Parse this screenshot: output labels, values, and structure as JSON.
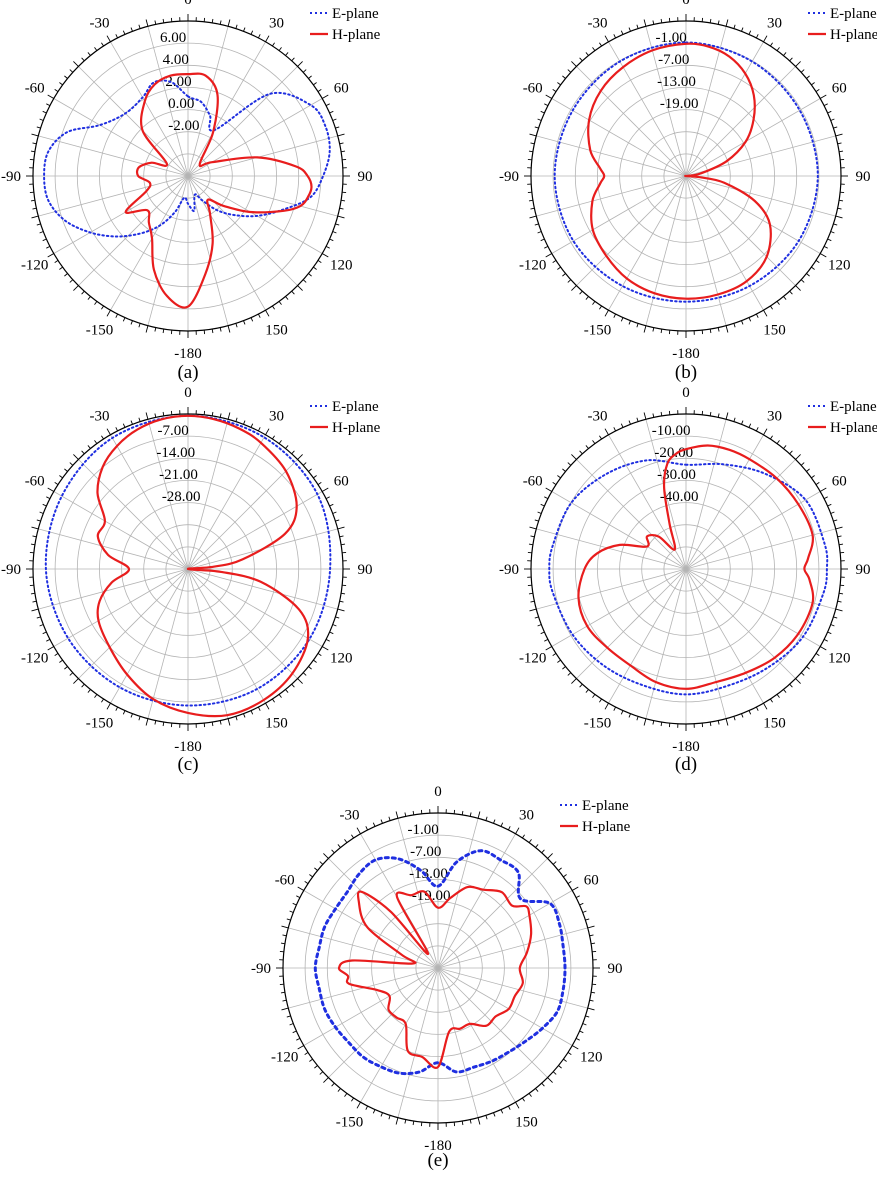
{
  "colors": {
    "e_plane": "#1f2fe0",
    "h_plane": "#e81d1d",
    "grid": "#b4b4b4",
    "axis": "#000000"
  },
  "chart_data": [
    {
      "type": "polar-line",
      "caption": "(a)",
      "angle_labels": [
        "0",
        "30",
        "60",
        "90",
        "120",
        "150",
        "-180",
        "-150",
        "-120",
        "-90",
        "-60",
        "-30"
      ],
      "radial_ticks": [
        "6.00",
        "4.00",
        "2.00",
        "0.00",
        "-2.00"
      ],
      "radial_range": [
        -6,
        8
      ],
      "legend": [
        "E-plane",
        "H-plane"
      ],
      "legend_placement": "top-right",
      "series": [
        {
          "name": "E-plane",
          "style": "dotted",
          "theta": [
            0,
            10,
            20,
            30,
            45,
            60,
            70,
            80,
            90,
            100,
            110,
            120,
            130,
            140,
            150,
            160,
            170,
            180,
            -170,
            -160,
            -150,
            -140,
            -130,
            -120,
            -110,
            -100,
            -90,
            -80,
            -70,
            -60,
            -45,
            -30,
            -20,
            -10
          ],
          "values": [
            1.2,
            0.8,
            -0.2,
            -1.2,
            4.5,
            6.8,
            7.2,
            7.0,
            6.2,
            5.2,
            3.0,
            1.2,
            -0.5,
            -2.0,
            -3.5,
            -4.2,
            -2.8,
            -3.5,
            -4.0,
            -2.5,
            -0.8,
            0.8,
            2.5,
            4.2,
            5.8,
            6.8,
            7.0,
            6.8,
            5.6,
            3.2,
            2.0,
            2.2,
            3.0,
            2.6
          ]
        },
        {
          "name": "H-plane",
          "style": "solid",
          "theta": [
            0,
            10,
            20,
            30,
            45,
            60,
            75,
            85,
            90,
            95,
            100,
            105,
            110,
            120,
            130,
            140,
            150,
            160,
            170,
            180,
            -170,
            -160,
            -150,
            -140,
            -130,
            -120,
            -110,
            -100,
            -90,
            -80,
            -70,
            -60,
            -45,
            -30,
            -20,
            -10
          ],
          "values": [
            3.2,
            3.2,
            1.8,
            -1.5,
            -4.5,
            -3.5,
            0.5,
            3.8,
            4.8,
            5.2,
            5.0,
            4.5,
            3.2,
            0.5,
            -1.8,
            -3.2,
            -2.0,
            0.5,
            3.0,
            5.8,
            5.0,
            3.0,
            0.5,
            -0.5,
            -1.2,
            0.5,
            -2.0,
            -2.5,
            -1.5,
            -1.5,
            -2.5,
            -3.8,
            -0.2,
            1.8,
            2.8,
            3.2
          ]
        }
      ]
    },
    {
      "type": "polar-line",
      "caption": "(b)",
      "angle_labels": [
        "0",
        "30",
        "60",
        "90",
        "120",
        "150",
        "-180",
        "-150",
        "-120",
        "-90",
        "-60",
        "-30"
      ],
      "radial_ticks": [
        "-1.00",
        "-7.00",
        "-13.00",
        "-19.00"
      ],
      "radial_range": [
        -31,
        5
      ],
      "legend": [
        "E-plane",
        "H-plane"
      ],
      "legend_placement": "top-right",
      "series": [
        {
          "name": "E-plane",
          "style": "dotted",
          "theta": [
            0,
            30,
            60,
            90,
            120,
            150,
            180,
            -150,
            -120,
            -90,
            -60,
            -30
          ],
          "values": [
            0.0,
            -0.3,
            -0.5,
            -0.4,
            -0.8,
            -1.5,
            -1.8,
            -1.5,
            -0.8,
            -0.5,
            -0.6,
            -0.3
          ]
        },
        {
          "name": "H-plane",
          "style": "solid",
          "theta": [
            0,
            10,
            20,
            30,
            40,
            50,
            60,
            70,
            80,
            85,
            90,
            95,
            100,
            110,
            120,
            135,
            150,
            165,
            180,
            -165,
            -150,
            -135,
            -120,
            -105,
            -95,
            -90,
            -85,
            -75,
            -60,
            -45,
            -30,
            -15
          ],
          "values": [
            -0.3,
            -0.5,
            -1.5,
            -3.5,
            -6.5,
            -10.5,
            -15.0,
            -21.0,
            -27.5,
            -30.5,
            -31.0,
            -28.0,
            -22.0,
            -14.0,
            -8.5,
            -4.5,
            -2.8,
            -2.5,
            -2.5,
            -2.8,
            -3.5,
            -4.8,
            -6.0,
            -8.5,
            -11.0,
            -12.0,
            -11.0,
            -8.0,
            -5.0,
            -3.0,
            -1.8,
            -0.8
          ]
        }
      ]
    },
    {
      "type": "polar-line",
      "caption": "(c)",
      "angle_labels": [
        "0",
        "30",
        "60",
        "90",
        "120",
        "150",
        "-180",
        "-150",
        "-120",
        "-90",
        "-60",
        "-30"
      ],
      "radial_ticks": [
        "-7.00",
        "-14.00",
        "-21.00",
        "-28.00"
      ],
      "radial_range": [
        -42,
        0
      ],
      "legend": [
        "E-plane",
        "H-plane"
      ],
      "legend_placement": "top-right",
      "series": [
        {
          "name": "E-plane",
          "style": "dotted",
          "theta": [
            0,
            30,
            60,
            90,
            120,
            150,
            180,
            -150,
            -120,
            -90,
            -60,
            -30
          ],
          "values": [
            -0.5,
            -0.8,
            -1.5,
            -3.5,
            -4.0,
            -4.5,
            -5.0,
            -5.0,
            -4.5,
            -3.5,
            -2.5,
            -1.0
          ]
        },
        {
          "name": "H-plane",
          "style": "solid",
          "theta": [
            0,
            10,
            20,
            30,
            45,
            60,
            70,
            80,
            85,
            90,
            95,
            100,
            110,
            120,
            135,
            150,
            165,
            180,
            -165,
            -150,
            -135,
            -120,
            -110,
            -100,
            -90,
            -80,
            -70,
            -60,
            -50,
            -40,
            -30,
            -20,
            -10
          ],
          "values": [
            -0.5,
            -0.8,
            -1.5,
            -2.5,
            -4.5,
            -8.0,
            -14.0,
            -27.0,
            -35.0,
            -42.0,
            -33.0,
            -22.0,
            -10.0,
            -4.5,
            -2.0,
            -1.0,
            -1.0,
            -3.0,
            -5.5,
            -9.0,
            -12.0,
            -14.0,
            -16.5,
            -21.0,
            -26.0,
            -20.0,
            -16.0,
            -16.0,
            -10.0,
            -6.0,
            -3.5,
            -1.8,
            -0.8
          ]
        }
      ]
    },
    {
      "type": "polar-line",
      "caption": "(d)",
      "angle_labels": [
        "0",
        "30",
        "60",
        "90",
        "120",
        "150",
        "-180",
        "-150",
        "-120",
        "-90",
        "-60",
        "-30"
      ],
      "radial_ticks": [
        "-10.00",
        "-20.00",
        "-30.00",
        "-40.00"
      ],
      "radial_range": [
        -50,
        5
      ],
      "legend": [
        "E-plane",
        "H-plane"
      ],
      "legend_placement": "top-right",
      "series": [
        {
          "name": "E-plane",
          "style": "dotted",
          "theta": [
            0,
            20,
            40,
            60,
            80,
            90,
            100,
            120,
            140,
            160,
            180,
            -160,
            -140,
            -120,
            -100,
            -90,
            -80,
            -60,
            -40,
            -20
          ],
          "values": [
            -13.0,
            -10.5,
            -6.0,
            -1.0,
            0.0,
            0.0,
            -0.5,
            -2.0,
            -4.5,
            -6.0,
            -5.5,
            -6.0,
            -5.0,
            -3.5,
            -2.0,
            -1.5,
            -2.0,
            -3.0,
            -6.0,
            -9.0
          ]
        },
        {
          "name": "H-plane",
          "style": "solid",
          "theta": [
            0,
            10,
            20,
            30,
            45,
            60,
            75,
            85,
            90,
            95,
            105,
            120,
            135,
            150,
            165,
            180,
            -165,
            -150,
            -135,
            -120,
            -105,
            -90,
            -80,
            -70,
            -60,
            -50,
            -40,
            -30,
            -20,
            -15,
            -10,
            -5
          ],
          "values": [
            -7.5,
            -5.5,
            -5.0,
            -5.0,
            -4.5,
            -4.0,
            -3.5,
            -6.5,
            -8.0,
            -6.0,
            -3.5,
            -4.0,
            -5.5,
            -7.5,
            -8.5,
            -7.5,
            -8.5,
            -10.5,
            -10.5,
            -9.5,
            -10.5,
            -14.0,
            -18.0,
            -25.0,
            -34.0,
            -32.0,
            -35.0,
            -42.0,
            -33.0,
            -20.0,
            -12.0,
            -9.0
          ]
        }
      ]
    },
    {
      "type": "polar-line",
      "caption": "(e)",
      "angle_labels": [
        "0",
        "30",
        "60",
        "90",
        "120",
        "150",
        "-180",
        "-150",
        "-120",
        "-90",
        "-60",
        "-30"
      ],
      "radial_ticks": [
        "-1.00",
        "-7.00",
        "-13.00",
        "-19.00"
      ],
      "radial_range": [
        -31,
        5
      ],
      "legend": [
        "E-plane",
        "H-plane"
      ],
      "legend_placement": "top-right",
      "series": [
        {
          "name": "E-plane",
          "style": "dotted",
          "theta": [
            0,
            10,
            20,
            30,
            40,
            50,
            60,
            70,
            80,
            90,
            100,
            110,
            120,
            130,
            140,
            150,
            160,
            170,
            180,
            -170,
            -160,
            -150,
            -140,
            -130,
            -120,
            -110,
            -100,
            -90,
            -80,
            -70,
            -60,
            -50,
            -40,
            -30,
            -20,
            -10
          ],
          "values": [
            -12.0,
            -6.0,
            -2.0,
            -2.0,
            -2.0,
            -6.0,
            -1.0,
            -1.0,
            -1.5,
            -1.5,
            -1.5,
            -1.5,
            -3.0,
            -4.5,
            -5.5,
            -6.0,
            -6.5,
            -6.5,
            -9.0,
            -6.5,
            -5.0,
            -4.5,
            -4.0,
            -4.0,
            -3.5,
            -3.0,
            -3.0,
            -2.5,
            -3.0,
            -3.0,
            -3.5,
            -3.5,
            -2.5,
            -2.0,
            -4.0,
            -8.0
          ]
        },
        {
          "name": "H-plane",
          "style": "solid",
          "theta": [
            0,
            10,
            20,
            30,
            40,
            50,
            55,
            60,
            70,
            80,
            90,
            100,
            110,
            120,
            130,
            140,
            150,
            160,
            170,
            180,
            -170,
            -160,
            -150,
            -140,
            -130,
            -120,
            -110,
            -100,
            -95,
            -90,
            -85,
            -80,
            -70,
            -60,
            -50,
            -45,
            -40,
            -35,
            -30,
            -20,
            -10
          ],
          "values": [
            -17.0,
            -14.5,
            -11.0,
            -10.0,
            -8.0,
            -8.5,
            -6.0,
            -6.5,
            -8.0,
            -10.0,
            -12.0,
            -11.0,
            -12.0,
            -12.0,
            -13.5,
            -13.5,
            -16.0,
            -16.0,
            -16.0,
            -8.0,
            -10.0,
            -10.5,
            -16.0,
            -16.0,
            -16.0,
            -18.0,
            -16.0,
            -10.0,
            -10.0,
            -8.0,
            -11.0,
            -25.0,
            -22.0,
            -12.0,
            -7.0,
            -6.0,
            -14.0,
            -27.0,
            -12.0,
            -13.0,
            -13.0
          ]
        }
      ]
    }
  ]
}
